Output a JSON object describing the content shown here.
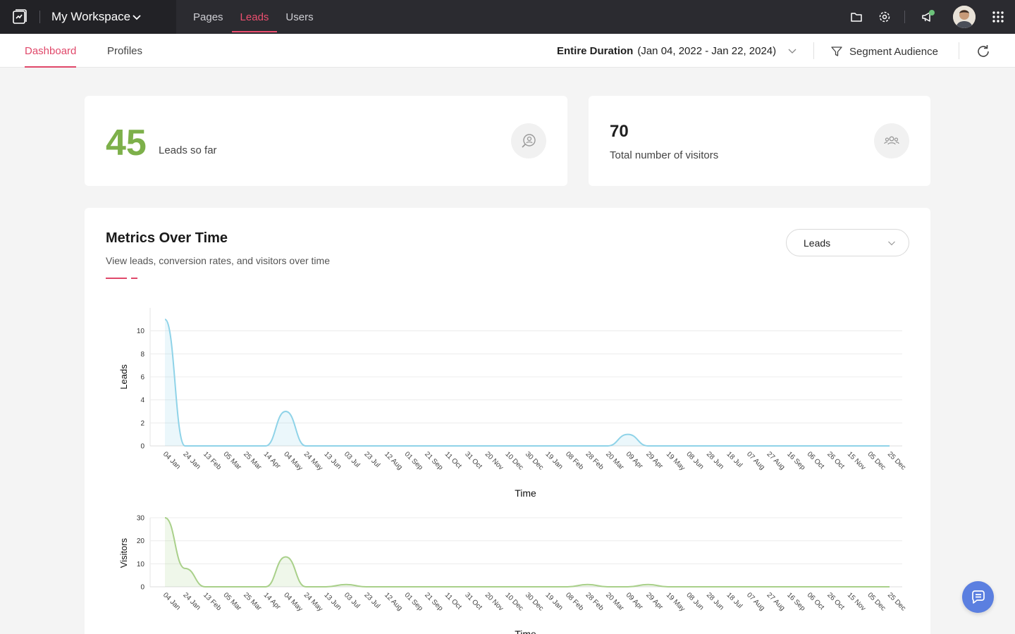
{
  "topbar": {
    "workspace": "My Workspace",
    "nav": [
      {
        "label": "Pages",
        "active": false
      },
      {
        "label": "Leads",
        "active": true
      },
      {
        "label": "Users",
        "active": false
      }
    ],
    "icons": [
      "folder-icon",
      "settings-icon",
      "announcement-icon",
      "avatar",
      "apps-grid-icon"
    ],
    "accent": "#ec4f6f"
  },
  "subbar": {
    "tabs": [
      {
        "label": "Dashboard",
        "active": true
      },
      {
        "label": "Profiles",
        "active": false
      }
    ],
    "duration_label": "Entire Duration",
    "duration_range": "(Jan 04, 2022 - Jan 22, 2024)",
    "segment_label": "Segment Audience"
  },
  "cards": {
    "leads": {
      "value": "45",
      "label": "Leads so far",
      "color": "#7db04a"
    },
    "visitors": {
      "value": "70",
      "label": "Total number of visitors"
    }
  },
  "metrics": {
    "title": "Metrics Over Time",
    "subtitle": "View leads, conversion rates, and visitors over time",
    "select_value": "Leads"
  },
  "chart_data": [
    {
      "type": "area",
      "xlabel": "Time",
      "ylabel": "Leads",
      "ylim": [
        0,
        12
      ],
      "yticks": [
        0,
        2,
        4,
        6,
        8,
        10
      ],
      "color": "#8fd3e8",
      "categories": [
        "04 Jan",
        "24 Jan",
        "13 Feb",
        "05 Mar",
        "25 Mar",
        "14 Apr",
        "04 May",
        "24 May",
        "13 Jun",
        "03 Jul",
        "23 Jul",
        "12 Aug",
        "01 Sep",
        "21 Sep",
        "11 Oct",
        "31 Oct",
        "20 Nov",
        "10 Dec",
        "30 Dec",
        "19 Jan",
        "08 Feb",
        "28 Feb",
        "20 Mar",
        "09 Apr",
        "29 Apr",
        "19 May",
        "08 Jun",
        "28 Jun",
        "18 Jul",
        "07 Aug",
        "27 Aug",
        "16 Sep",
        "06 Oct",
        "26 Oct",
        "15 Nov",
        "05 Dec",
        "25 Dec"
      ],
      "values": [
        11,
        0,
        0,
        0,
        0,
        0,
        3,
        0,
        0,
        0,
        0,
        0,
        0,
        0,
        0,
        0,
        0,
        0,
        0,
        0,
        0,
        0,
        0,
        1,
        0,
        0,
        0,
        0,
        0,
        0,
        0,
        0,
        0,
        0,
        0,
        0,
        0
      ]
    },
    {
      "type": "area",
      "xlabel": "Time",
      "ylabel": "Visitors",
      "ylim": [
        0,
        30
      ],
      "yticks": [
        0,
        10,
        20,
        30
      ],
      "color": "#a9d08a",
      "categories": [
        "04 Jan",
        "24 Jan",
        "13 Feb",
        "05 Mar",
        "25 Mar",
        "14 Apr",
        "04 May",
        "24 May",
        "13 Jun",
        "03 Jul",
        "23 Jul",
        "12 Aug",
        "01 Sep",
        "21 Sep",
        "11 Oct",
        "31 Oct",
        "20 Nov",
        "10 Dec",
        "30 Dec",
        "19 Jan",
        "08 Feb",
        "28 Feb",
        "20 Mar",
        "09 Apr",
        "29 Apr",
        "19 May",
        "08 Jun",
        "28 Jun",
        "18 Jul",
        "07 Aug",
        "27 Aug",
        "16 Sep",
        "06 Oct",
        "26 Oct",
        "15 Nov",
        "05 Dec",
        "25 Dec"
      ],
      "values": [
        30,
        8,
        0,
        0,
        0,
        0,
        13,
        0,
        0,
        1,
        0,
        0,
        0,
        0,
        0,
        0,
        0,
        0,
        0,
        0,
        0,
        1,
        0,
        0,
        1,
        0,
        0,
        0,
        0,
        0,
        0,
        0,
        0,
        0,
        0,
        0,
        0
      ]
    }
  ]
}
